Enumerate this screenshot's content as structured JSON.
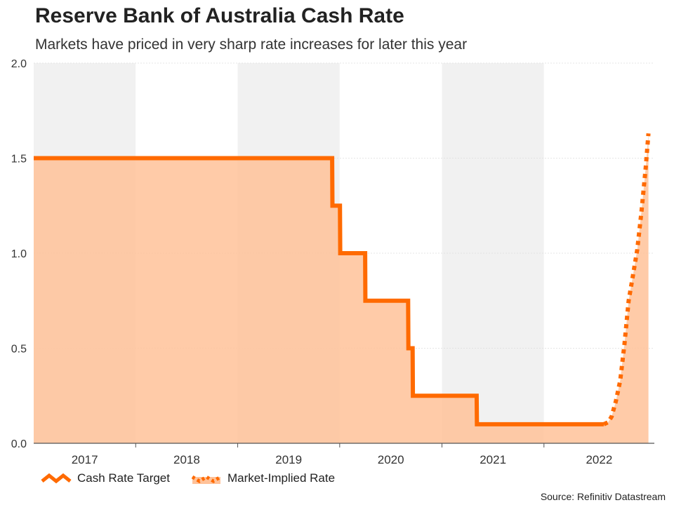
{
  "chart_data": {
    "type": "line",
    "title": "Reserve Bank of Australia Cash Rate",
    "subtitle": "Markets have priced in very sharp rate increases for later this year",
    "ylim": [
      0,
      2.0
    ],
    "yticks": [
      "0.0",
      "0.5",
      "1.0",
      "1.5",
      "2.0"
    ],
    "xlim": [
      "2016-07-01",
      "2022-07-31"
    ],
    "year_labels": [
      "2017",
      "2018",
      "2019",
      "2020",
      "2021",
      "2022"
    ],
    "year_bands": [
      {
        "start": "2016-07-01",
        "end": "2017-07-01",
        "shaded": true
      },
      {
        "start": "2017-07-01",
        "end": "2018-07-01",
        "shaded": false
      },
      {
        "start": "2018-07-01",
        "end": "2019-07-01",
        "shaded": true
      },
      {
        "start": "2019-07-01",
        "end": "2020-07-01",
        "shaded": false
      },
      {
        "start": "2020-07-01",
        "end": "2021-07-01",
        "shaded": true
      },
      {
        "start": "2021-07-01",
        "end": "2022-07-31",
        "shaded": false
      }
    ],
    "grid": true,
    "legend_position": "bottom-left",
    "colors": {
      "line": "#ff6a00",
      "fill": "#ffc299",
      "band": "#f1f1f1"
    },
    "series": [
      {
        "name": "Cash Rate Target",
        "style": "solid",
        "points": [
          [
            "2016-07-01",
            1.5
          ],
          [
            "2019-06-04",
            1.5
          ],
          [
            "2019-06-05",
            1.25
          ],
          [
            "2019-07-02",
            1.25
          ],
          [
            "2019-07-03",
            1.0
          ],
          [
            "2019-09-30",
            1.0
          ],
          [
            "2019-10-01",
            0.75
          ],
          [
            "2020-03-02",
            0.75
          ],
          [
            "2020-03-03",
            0.5
          ],
          [
            "2020-03-18",
            0.5
          ],
          [
            "2020-03-19",
            0.25
          ],
          [
            "2020-11-02",
            0.25
          ],
          [
            "2020-11-03",
            0.1
          ],
          [
            "2022-01-31",
            0.1
          ]
        ]
      },
      {
        "name": "Market-Implied Rate",
        "style": "dotted",
        "points": [
          [
            "2022-01-31",
            0.1
          ],
          [
            "2022-02-15",
            0.11
          ],
          [
            "2022-02-28",
            0.14
          ],
          [
            "2022-03-15",
            0.22
          ],
          [
            "2022-03-31",
            0.33
          ],
          [
            "2022-04-15",
            0.52
          ],
          [
            "2022-04-30",
            0.75
          ],
          [
            "2022-05-15",
            0.88
          ],
          [
            "2022-05-31",
            1.02
          ],
          [
            "2022-06-15",
            1.22
          ],
          [
            "2022-06-30",
            1.45
          ],
          [
            "2022-07-10",
            1.63
          ]
        ]
      }
    ]
  },
  "legend": {
    "items": [
      {
        "label": "Cash Rate Target"
      },
      {
        "label": "Market-Implied Rate"
      }
    ]
  },
  "source": "Source: Refinitiv Datastream"
}
